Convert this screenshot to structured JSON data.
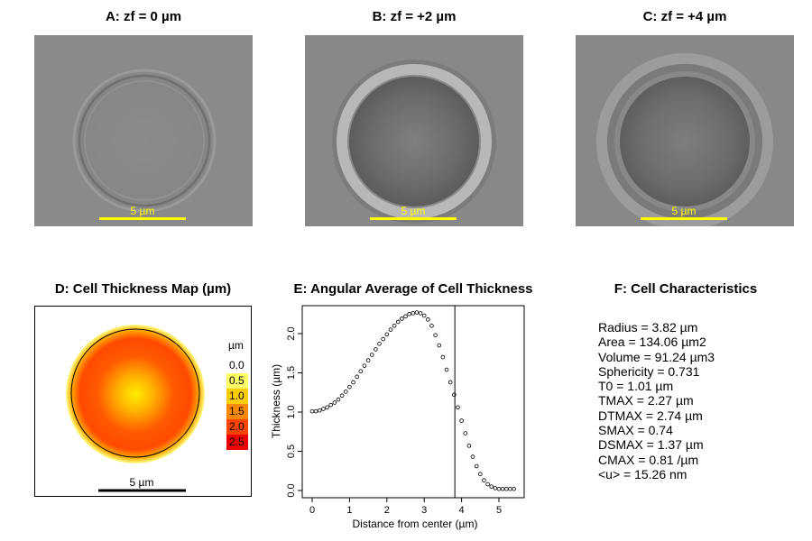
{
  "panels": {
    "a": {
      "title": "A: zf = 0 µm",
      "scale_label": "5 µm"
    },
    "b": {
      "title": "B: zf = +2 µm",
      "scale_label": "5 µm"
    },
    "c": {
      "title": "C: zf = +4 µm",
      "scale_label": "5 µm"
    },
    "d": {
      "title": "D: Cell Thickness Map (µm)",
      "scale_label": "5 µm",
      "legend_unit": "µm",
      "legend": [
        {
          "label": "0.0",
          "color": "#ffffff"
        },
        {
          "label": "0.5",
          "color": "#ffff66"
        },
        {
          "label": "1.0",
          "color": "#ffcc00"
        },
        {
          "label": "1.5",
          "color": "#ff8800"
        },
        {
          "label": "2.0",
          "color": "#ff4400"
        },
        {
          "label": "2.5",
          "color": "#ee0000"
        }
      ]
    },
    "e": {
      "title": "E: Angular Average of Cell Thickness"
    },
    "f": {
      "title": "F: Cell Characteristics",
      "lines": [
        "Radius = 3.82 µm",
        "Area = 134.06 µm2",
        "Volume = 91.24 µm3",
        "Sphericity = 0.731",
        "T0 = 1.01 µm",
        "TMAX = 2.27 µm",
        "DTMAX = 2.74 µm",
        "SMAX = 0.74",
        "DSMAX = 1.37 µm",
        "CMAX = 0.81 /µm",
        "<u> = 15.26 nm"
      ]
    }
  },
  "chart_data": {
    "type": "scatter",
    "title": "E: Angular Average of Cell Thickness",
    "xlabel": "Distance from center (µm)",
    "ylabel": "Thickness (µm)",
    "xlim": [
      0,
      5.5
    ],
    "ylim": [
      0,
      2.3
    ],
    "xticks": [
      0,
      1,
      2,
      3,
      4,
      5
    ],
    "yticks": [
      0.0,
      0.5,
      1.0,
      1.5,
      2.0
    ],
    "xtick_labels": [
      "0",
      "1",
      "2",
      "3",
      "4",
      "5"
    ],
    "ytick_labels": [
      "0.0",
      "0.5",
      "1.0",
      "1.5",
      "2.0"
    ],
    "vline_x": 3.82,
    "x": [
      0.0,
      0.1,
      0.2,
      0.3,
      0.4,
      0.5,
      0.6,
      0.7,
      0.8,
      0.9,
      1.0,
      1.1,
      1.2,
      1.3,
      1.4,
      1.5,
      1.6,
      1.7,
      1.8,
      1.9,
      2.0,
      2.1,
      2.2,
      2.3,
      2.4,
      2.5,
      2.6,
      2.7,
      2.8,
      2.9,
      3.0,
      3.1,
      3.2,
      3.3,
      3.4,
      3.5,
      3.6,
      3.7,
      3.8,
      3.9,
      4.0,
      4.1,
      4.2,
      4.3,
      4.4,
      4.5,
      4.6,
      4.7,
      4.8,
      4.9,
      5.0,
      5.1,
      5.2,
      5.3,
      5.4
    ],
    "y": [
      1.01,
      1.01,
      1.02,
      1.04,
      1.06,
      1.09,
      1.12,
      1.16,
      1.21,
      1.26,
      1.32,
      1.38,
      1.45,
      1.52,
      1.59,
      1.66,
      1.73,
      1.8,
      1.87,
      1.93,
      1.99,
      2.05,
      2.1,
      2.15,
      2.19,
      2.22,
      2.25,
      2.26,
      2.27,
      2.26,
      2.23,
      2.18,
      2.1,
      1.98,
      1.85,
      1.7,
      1.54,
      1.38,
      1.22,
      1.06,
      0.89,
      0.73,
      0.57,
      0.43,
      0.31,
      0.21,
      0.13,
      0.08,
      0.05,
      0.03,
      0.02,
      0.02,
      0.02,
      0.02,
      0.02
    ]
  }
}
